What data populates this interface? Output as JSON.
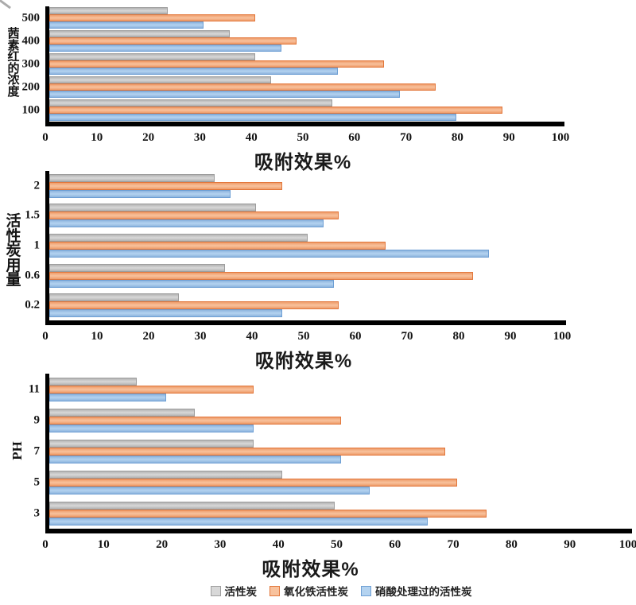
{
  "colors": {
    "axis": "#000000",
    "series": {
      "gray": {
        "border": "#9d9d9d",
        "edge": "#b3b3b3",
        "center": "#d8d8d8"
      },
      "orange": {
        "border": "#e2773b",
        "edge": "#ef9c6a",
        "center": "#f8c29d"
      },
      "blue": {
        "border": "#6e9fd4",
        "edge": "#8db4de",
        "center": "#b4d3f0"
      }
    }
  },
  "legend": {
    "items": [
      {
        "label": "活性炭",
        "color_key": "gray"
      },
      {
        "label": "氧化铁活性炭",
        "color_key": "orange"
      },
      {
        "label": "硝酸处理过的活性炭",
        "color_key": "blue"
      }
    ]
  },
  "chart_data": [
    {
      "type": "bar",
      "orientation": "horizontal",
      "title": "",
      "xlabel": "吸附效果%",
      "ylabel": "茜素红的浓度",
      "xlim": [
        0,
        100
      ],
      "xticks": [
        0,
        10,
        20,
        30,
        40,
        50,
        60,
        70,
        80,
        90,
        100
      ],
      "grid": false,
      "legend_position": "shared-bottom",
      "categories": [
        "500",
        "400",
        "300",
        "200",
        "100"
      ],
      "series": [
        {
          "name": "活性炭",
          "color_key": "gray",
          "values": [
            23,
            35,
            40,
            43,
            55
          ]
        },
        {
          "name": "氧化铁活性炭",
          "color_key": "orange",
          "values": [
            40,
            48,
            65,
            75,
            88
          ]
        },
        {
          "name": "硝酸处理过的活性炭",
          "color_key": "blue",
          "values": [
            30,
            45,
            56,
            68,
            79
          ]
        }
      ]
    },
    {
      "type": "bar",
      "orientation": "horizontal",
      "title": "",
      "xlabel": "吸附效果%",
      "ylabel": "活性炭用量",
      "xlim": [
        0,
        100
      ],
      "xticks": [
        0,
        10,
        20,
        30,
        40,
        50,
        60,
        70,
        80,
        90,
        100
      ],
      "grid": false,
      "legend_position": "shared-bottom",
      "categories": [
        "2",
        "1.5",
        "1",
        "0.6",
        "0.2"
      ],
      "series": [
        {
          "name": "活性炭",
          "color_key": "gray",
          "values": [
            32,
            40,
            50,
            34,
            25
          ]
        },
        {
          "name": "氧化铁活性炭",
          "color_key": "orange",
          "values": [
            45,
            56,
            65,
            82,
            56
          ]
        },
        {
          "name": "硝酸处理过的活性炭",
          "color_key": "blue",
          "values": [
            35,
            53,
            85,
            55,
            45
          ]
        }
      ]
    },
    {
      "type": "bar",
      "orientation": "horizontal",
      "title": "",
      "xlabel": "吸附效果%",
      "ylabel": "PH",
      "xlim": [
        0,
        100
      ],
      "xticks": [
        0,
        10,
        20,
        30,
        40,
        50,
        60,
        70,
        80,
        90,
        100
      ],
      "grid": false,
      "legend_position": "shared-bottom",
      "categories": [
        "11",
        "9",
        "7",
        "5",
        "3"
      ],
      "series": [
        {
          "name": "活性炭",
          "color_key": "gray",
          "values": [
            15,
            25,
            35,
            40,
            49
          ]
        },
        {
          "name": "氧化铁活性炭",
          "color_key": "orange",
          "values": [
            35,
            50,
            68,
            70,
            75
          ]
        },
        {
          "name": "硝酸处理过的活性炭",
          "color_key": "blue",
          "values": [
            20,
            35,
            50,
            55,
            65
          ]
        }
      ]
    }
  ]
}
